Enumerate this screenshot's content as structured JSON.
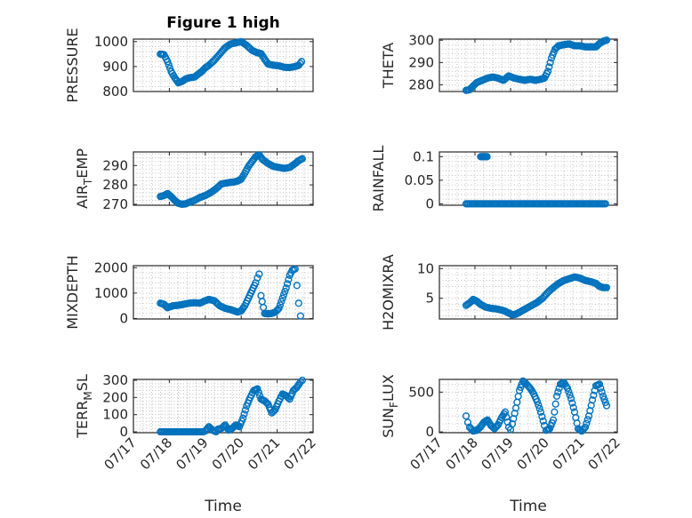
{
  "colors": {
    "marker": "#0072bd",
    "axis": "#262626",
    "grid": "#b0b0b0"
  },
  "chart_data": [
    {
      "type": "scatter",
      "title": "Figure 1 high",
      "ylabel": "PRESSURE",
      "ylim": [
        800,
        1010
      ],
      "yticks": [
        800,
        900,
        1000
      ],
      "ytick_labels": [
        "800",
        "900",
        "1000"
      ],
      "x_dates": [
        "07/17",
        "07/18",
        "07/19",
        "07/20",
        "07/21",
        "07/22"
      ],
      "grid": true,
      "series": [
        {
          "x": [
            17.75,
            17.85,
            17.95,
            18.05,
            18.15,
            18.25,
            18.35,
            18.45,
            18.55,
            18.7,
            18.9,
            19.0,
            19.1,
            19.25,
            19.4,
            19.55,
            19.7,
            19.85,
            20.0,
            20.15,
            20.3,
            20.45,
            20.55,
            20.65,
            20.75,
            20.9,
            21.05,
            21.2,
            21.35,
            21.5,
            21.6,
            21.68
          ],
          "y": [
            950,
            948,
            920,
            880,
            855,
            835,
            840,
            850,
            855,
            858,
            880,
            895,
            905,
            925,
            950,
            975,
            990,
            995,
            1000,
            985,
            965,
            955,
            952,
            930,
            910,
            905,
            903,
            897,
            896,
            900,
            905,
            920
          ]
        }
      ]
    },
    {
      "type": "scatter",
      "title": "",
      "ylabel": "THETA",
      "ylim": [
        277,
        300.5
      ],
      "yticks": [
        280,
        290,
        300
      ],
      "ytick_labels": [
        "280",
        "290",
        "300"
      ],
      "x_dates": [
        "07/17",
        "07/18",
        "07/19",
        "07/20",
        "07/21",
        "07/22"
      ],
      "grid": true,
      "series": [
        {
          "x": [
            17.75,
            17.85,
            17.95,
            18.05,
            18.2,
            18.35,
            18.5,
            18.65,
            18.8,
            18.95,
            19.1,
            19.25,
            19.4,
            19.55,
            19.7,
            19.85,
            19.95,
            20.05,
            20.15,
            20.25,
            20.35,
            20.5,
            20.65,
            20.8,
            20.95,
            21.1,
            21.25,
            21.4,
            21.5,
            21.6,
            21.7
          ],
          "y": [
            277.5,
            277.8,
            279.5,
            281,
            282,
            283,
            283.5,
            283,
            282,
            284,
            283,
            282.5,
            282,
            282.5,
            282,
            282.5,
            283,
            286,
            292,
            296,
            297.5,
            298,
            298.3,
            297.5,
            297.5,
            297,
            297,
            297,
            298.5,
            299.5,
            300
          ]
        }
      ]
    },
    {
      "type": "scatter",
      "title": "",
      "ylabel": "AIR_TEMP",
      "ylim": [
        269.5,
        297
      ],
      "yticks": [
        270,
        280,
        290
      ],
      "ytick_labels": [
        "270",
        "280",
        "290"
      ],
      "x_dates": [
        "07/17",
        "07/18",
        "07/19",
        "07/20",
        "07/21",
        "07/22"
      ],
      "grid": true,
      "series": [
        {
          "x": [
            17.75,
            17.85,
            17.95,
            18.05,
            18.15,
            18.25,
            18.35,
            18.45,
            18.55,
            18.7,
            18.85,
            19.0,
            19.15,
            19.3,
            19.45,
            19.6,
            19.7,
            19.8,
            19.9,
            20.0,
            20.1,
            20.2,
            20.3,
            20.4,
            20.5,
            20.6,
            20.75,
            20.9,
            21.05,
            21.2,
            21.35,
            21.5,
            21.6,
            21.7
          ],
          "y": [
            274,
            274.5,
            275.5,
            274,
            272,
            270.5,
            270,
            270.2,
            271,
            272,
            273.5,
            274.5,
            276,
            278,
            280.5,
            281,
            281.3,
            281.5,
            282,
            283,
            286,
            289.5,
            292,
            294.5,
            295.5,
            293,
            291,
            289.5,
            289,
            288.5,
            289,
            291,
            292.5,
            293.5
          ]
        }
      ]
    },
    {
      "type": "scatter",
      "title": "",
      "ylabel": "RAINFALL",
      "ylim": [
        -0.003,
        0.11
      ],
      "yticks": [
        0,
        0.05,
        0.1
      ],
      "ytick_labels": [
        "0",
        "0.05",
        "0.1"
      ],
      "x_dates": [
        "07/17",
        "07/18",
        "07/19",
        "07/20",
        "07/21",
        "07/22"
      ],
      "grid": true,
      "series": [
        {
          "x": [
            17.75,
            17.9,
            18.05,
            18.2,
            18.35,
            18.5,
            18.65,
            18.8,
            18.95,
            19.1,
            19.25,
            19.4,
            19.55,
            19.7,
            19.85,
            20.0,
            20.15,
            20.3,
            20.45,
            20.6,
            20.75,
            20.9,
            21.05,
            21.2,
            21.35,
            21.5,
            21.6,
            21.7,
            18.2,
            18.3
          ],
          "y": [
            0,
            0,
            0,
            0,
            0,
            0,
            0,
            0,
            0,
            0,
            0,
            0,
            0,
            0,
            0,
            0,
            0,
            0,
            0,
            0,
            0,
            0,
            0,
            0,
            0,
            0,
            0,
            0,
            0.1,
            0.1
          ]
        }
      ]
    },
    {
      "type": "scatter",
      "title": "",
      "ylabel": "MIXDEPTH",
      "ylim": [
        -20,
        2080
      ],
      "yticks": [
        0,
        1000,
        2000
      ],
      "ytick_labels": [
        "0",
        "1000",
        "2000"
      ],
      "x_dates": [
        "07/17",
        "07/18",
        "07/19",
        "07/20",
        "07/21",
        "07/22"
      ],
      "grid": true,
      "series": [
        {
          "x": [
            17.75,
            17.85,
            17.95,
            18.1,
            18.25,
            18.4,
            18.55,
            18.7,
            18.85,
            19.0,
            19.1,
            19.25,
            19.4,
            19.55,
            19.7,
            19.8,
            19.9,
            20.0,
            20.1,
            20.2,
            20.3,
            20.4,
            20.45,
            20.5,
            20.55,
            20.65,
            20.75,
            20.85,
            20.95,
            21.05,
            21.15,
            21.25,
            21.35,
            21.42,
            21.5,
            21.55,
            21.6,
            21.65
          ],
          "y": [
            600,
            560,
            420,
            500,
            520,
            560,
            600,
            620,
            600,
            700,
            750,
            700,
            500,
            400,
            350,
            300,
            250,
            300,
            500,
            800,
            1100,
            1400,
            1600,
            1750,
            900,
            200,
            180,
            200,
            250,
            400,
            800,
            1200,
            1700,
            1900,
            1950,
            1300,
            600,
            100
          ]
        }
      ]
    },
    {
      "type": "scatter",
      "title": "",
      "ylabel": "H2OMIXRA",
      "ylim": [
        1.5,
        10.5
      ],
      "yticks": [
        5,
        10
      ],
      "ytick_labels": [
        "5",
        "10"
      ],
      "x_dates": [
        "07/17",
        "07/18",
        "07/19",
        "07/20",
        "07/21",
        "07/22"
      ],
      "grid": true,
      "series": [
        {
          "x": [
            17.75,
            17.85,
            17.95,
            18.05,
            18.15,
            18.3,
            18.45,
            18.6,
            18.75,
            18.85,
            18.95,
            19.05,
            19.15,
            19.3,
            19.45,
            19.6,
            19.75,
            19.9,
            20.05,
            20.2,
            20.35,
            20.5,
            20.65,
            20.8,
            20.95,
            21.1,
            21.25,
            21.4,
            21.5,
            21.6,
            21.7
          ],
          "y": [
            3.8,
            4.2,
            4.8,
            4.5,
            4.0,
            3.5,
            3.3,
            3.2,
            3.0,
            2.8,
            2.5,
            2.2,
            2.3,
            2.8,
            3.3,
            3.8,
            4.3,
            5.0,
            6.0,
            6.8,
            7.5,
            8.0,
            8.3,
            8.6,
            8.4,
            8.0,
            7.8,
            7.5,
            7.0,
            6.8,
            6.8
          ]
        }
      ]
    },
    {
      "type": "scatter",
      "title": "",
      "ylabel": "TERR_MSL",
      "ylim": [
        -5,
        305
      ],
      "yticks": [
        0,
        100,
        200,
        300
      ],
      "ytick_labels": [
        "0",
        "100",
        "200",
        "300"
      ],
      "x_dates": [
        "07/17",
        "07/18",
        "07/19",
        "07/20",
        "07/21",
        "07/22"
      ],
      "grid": true,
      "series": [
        {
          "x": [
            17.75,
            17.9,
            18.05,
            18.2,
            18.35,
            18.5,
            18.65,
            18.8,
            18.95,
            19.0,
            19.1,
            19.2,
            19.3,
            19.35,
            19.45,
            19.55,
            19.65,
            19.75,
            19.85,
            19.95,
            20.05,
            20.15,
            20.25,
            20.35,
            20.45,
            20.55,
            20.65,
            20.75,
            20.85,
            20.95,
            21.05,
            21.15,
            21.25,
            21.35,
            21.45,
            21.55,
            21.65,
            21.7
          ],
          "y": [
            0,
            0,
            0,
            0,
            0,
            0,
            0,
            0,
            0,
            5,
            30,
            10,
            0,
            15,
            20,
            40,
            10,
            20,
            40,
            30,
            80,
            150,
            200,
            240,
            250,
            190,
            180,
            160,
            110,
            130,
            180,
            220,
            210,
            190,
            240,
            260,
            290,
            300
          ]
        }
      ]
    },
    {
      "type": "scatter",
      "title": "",
      "ylabel": "SUN_FLUX",
      "ylim": [
        -10,
        660
      ],
      "yticks": [
        0,
        500
      ],
      "ytick_labels": [
        "0",
        "500"
      ],
      "x_dates": [
        "07/17",
        "07/18",
        "07/19",
        "07/20",
        "07/21",
        "07/22"
      ],
      "grid": true,
      "series": [
        {
          "x": [
            17.75,
            17.8,
            17.85,
            17.95,
            18.05,
            18.15,
            18.25,
            18.35,
            18.45,
            18.55,
            18.65,
            18.75,
            18.85,
            18.95,
            19.0,
            19.05,
            19.15,
            19.25,
            19.35,
            19.45,
            19.55,
            19.65,
            19.75,
            19.85,
            19.95,
            20.0,
            20.1,
            20.2,
            20.3,
            20.4,
            20.5,
            20.6,
            20.7,
            20.8,
            20.9,
            21.0,
            21.1,
            21.2,
            21.3,
            21.4,
            21.5,
            21.6,
            21.7
          ],
          "y": [
            200,
            120,
            60,
            10,
            20,
            60,
            120,
            150,
            80,
            40,
            90,
            180,
            250,
            60,
            30,
            100,
            300,
            520,
            640,
            600,
            550,
            480,
            380,
            250,
            80,
            20,
            40,
            150,
            450,
            600,
            620,
            550,
            420,
            250,
            40,
            10,
            60,
            200,
            400,
            580,
            600,
            450,
            330
          ]
        }
      ]
    }
  ],
  "figure": {
    "xlabels": [
      "Time",
      "Time"
    ],
    "ylabel_text": [
      "PRESSURE",
      "THETA",
      "AIR",
      "RAINFALL",
      "MIXDEPTH",
      "H2OMIXRA",
      "TERR",
      "SUN"
    ],
    "ylabel_subs": [
      "",
      "",
      "T",
      "",
      "",
      "",
      "M",
      "F"
    ],
    "ylabel_tails": [
      "",
      "",
      "EMP",
      "",
      "",
      "",
      "SL",
      "LUX"
    ]
  }
}
